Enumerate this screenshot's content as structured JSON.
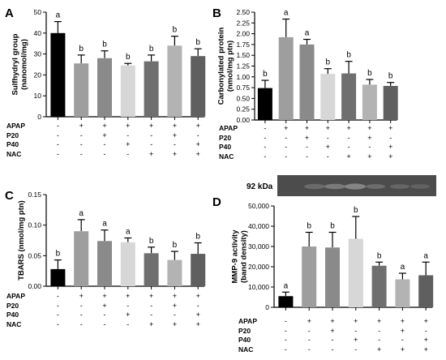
{
  "treatment_labels": [
    "APAP",
    "P20",
    "P40",
    "NAC"
  ],
  "colors": [
    "#000000",
    "#9e9e9e",
    "#8a8a8a",
    "#d7d7d7",
    "#6f6f6f",
    "#b3b3b3",
    "#5f5f5f"
  ],
  "treatment_matrix": [
    [
      "-",
      "+",
      "+",
      "+",
      "+",
      "+",
      "+"
    ],
    [
      "-",
      "-",
      "+",
      "-",
      "-",
      "+",
      "-"
    ],
    [
      "-",
      "-",
      "-",
      "+",
      "-",
      "-",
      "+"
    ],
    [
      "-",
      "-",
      "-",
      "-",
      "+",
      "+",
      "+"
    ]
  ],
  "blot": {
    "label": "92 kDa"
  },
  "chart_data": [
    {
      "panel": "A",
      "type": "bar",
      "ylabel": [
        "Sulfhydryl group",
        "(nanomol/mg)"
      ],
      "ylim": [
        0,
        50
      ],
      "yticks": [
        0,
        10,
        20,
        30,
        40,
        50
      ],
      "tick_labels": [
        "0",
        "10",
        "20",
        "30",
        "40",
        "50"
      ],
      "values": [
        40,
        25.5,
        28,
        24.5,
        26.5,
        34,
        29
      ],
      "errors": [
        5.5,
        4,
        3.5,
        1,
        3,
        4.5,
        3.5
      ],
      "letters": [
        "a",
        "b",
        "b",
        "b",
        "b",
        "b",
        "b"
      ]
    },
    {
      "panel": "B",
      "type": "bar",
      "ylabel": [
        "Carbonylated protein",
        "(nmol/mg ptn)"
      ],
      "ylim": [
        0,
        2.5
      ],
      "yticks": [
        0,
        0.25,
        0.5,
        0.75,
        1,
        1.25,
        1.5,
        1.75,
        2,
        2.25,
        2.5
      ],
      "tick_labels": [
        "0.00",
        "0.25",
        "0.50",
        "0.75",
        "1.00",
        "1.25",
        "1.50",
        "1.75",
        "2.00",
        "2.25",
        "2.50"
      ],
      "values": [
        0.74,
        1.92,
        1.75,
        1.07,
        1.08,
        0.82,
        0.79
      ],
      "errors": [
        0.18,
        0.42,
        0.12,
        0.12,
        0.28,
        0.12,
        0.08
      ],
      "letters": [
        "b",
        "a",
        "a",
        "b",
        "b",
        "b",
        "b"
      ]
    },
    {
      "panel": "C",
      "type": "bar",
      "ylabel": [
        "TBARS (nmol/mg ptn)"
      ],
      "ylim": [
        0,
        0.15
      ],
      "yticks": [
        0,
        0.05,
        0.1,
        0.15
      ],
      "tick_labels": [
        "0.00",
        "0.05",
        "0.10",
        "0.15"
      ],
      "values": [
        0.028,
        0.09,
        0.074,
        0.072,
        0.054,
        0.043,
        0.053
      ],
      "errors": [
        0.015,
        0.019,
        0.018,
        0.007,
        0.01,
        0.014,
        0.018
      ],
      "letters": [
        "b",
        "a",
        "a",
        "a",
        "b",
        "b",
        "b"
      ]
    },
    {
      "panel": "D",
      "type": "bar",
      "ylabel": [
        "MMP-9 activity",
        "(band density)"
      ],
      "ylim": [
        0,
        50000
      ],
      "yticks": [
        0,
        10000,
        20000,
        30000,
        40000,
        50000
      ],
      "tick_labels": [
        "0",
        "10,000",
        "20,000",
        "30,000",
        "40,000",
        "50,000"
      ],
      "values": [
        5500,
        30000,
        29500,
        33800,
        20500,
        13800,
        15800
      ],
      "errors": [
        2000,
        7000,
        7500,
        11000,
        1800,
        3000,
        6500
      ],
      "letters": [
        "a",
        "b",
        "b",
        "b",
        "b",
        "a",
        "a"
      ]
    }
  ]
}
